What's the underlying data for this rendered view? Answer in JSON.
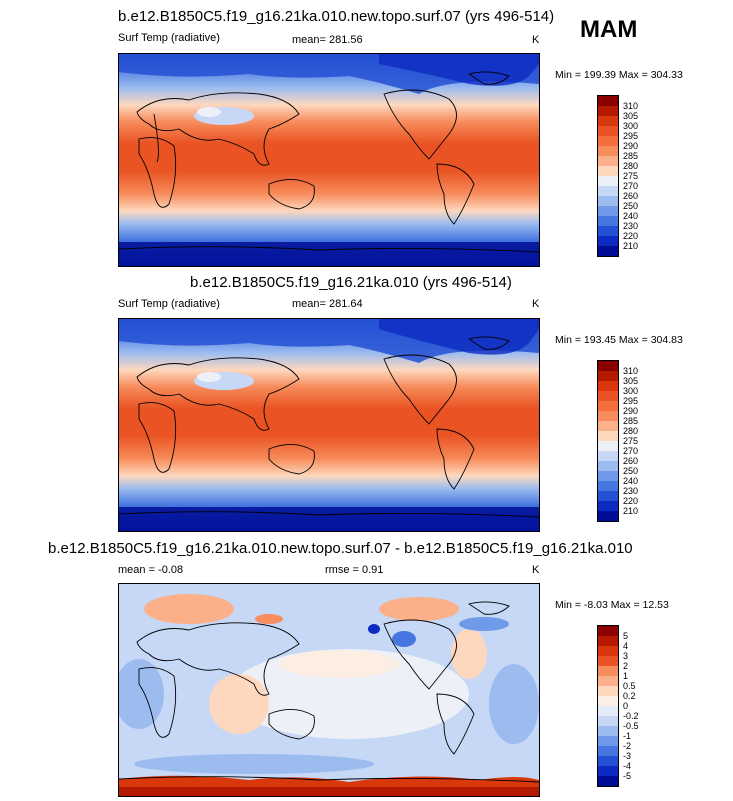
{
  "season": "MAM",
  "panels": [
    {
      "title": "b.e12.B1850C5.f19_g16.21ka.010.new.topo.surf.07 (yrs 496-514)",
      "variable": "Surf Temp (radiative)",
      "stat": "mean= 281.56",
      "stat2": "",
      "units": "K",
      "minmax": "Min = 199.39 Max = 304.33",
      "levels": [
        "310",
        "305",
        "300",
        "295",
        "290",
        "285",
        "280",
        "275",
        "270",
        "260",
        "250",
        "240",
        "230",
        "220",
        "210"
      ],
      "colors": [
        "#8b0000",
        "#b31a00",
        "#d8380c",
        "#ea5424",
        "#f26e3c",
        "#f78c5c",
        "#fbb08a",
        "#fdd8be",
        "#eef0f8",
        "#c6d8f5",
        "#9cbcf0",
        "#6e9ae8",
        "#4676e0",
        "#2450d4",
        "#0d2bc0",
        "#000e96"
      ]
    },
    {
      "title": "b.e12.B1850C5.f19_g16.21ka.010 (yrs 496-514)",
      "variable": "Surf Temp (radiative)",
      "stat": "mean= 281.64",
      "stat2": "",
      "units": "K",
      "minmax": "Min = 193.45 Max = 304.83",
      "levels": [
        "310",
        "305",
        "300",
        "295",
        "290",
        "285",
        "280",
        "275",
        "270",
        "260",
        "250",
        "240",
        "230",
        "220",
        "210"
      ],
      "colors": [
        "#8b0000",
        "#b31a00",
        "#d8380c",
        "#ea5424",
        "#f26e3c",
        "#f78c5c",
        "#fbb08a",
        "#fdd8be",
        "#eef0f8",
        "#c6d8f5",
        "#9cbcf0",
        "#6e9ae8",
        "#4676e0",
        "#2450d4",
        "#0d2bc0",
        "#000e96"
      ]
    },
    {
      "title": "b.e12.B1850C5.f19_g16.21ka.010.new.topo.surf.07 - b.e12.B1850C5.f19_g16.21ka.010",
      "variable": "",
      "stat": "mean =   -0.08",
      "stat2": "rmse =   0.91",
      "units": "K",
      "minmax": "Min = -8.03 Max = 12.53",
      "levels": [
        "5",
        "4",
        "3",
        "2",
        "1",
        "0.5",
        "0.2",
        "0",
        "-0.2",
        "-0.5",
        "-1",
        "-2",
        "-3",
        "-4",
        "-5"
      ],
      "colors": [
        "#8b0000",
        "#b31a00",
        "#d8380c",
        "#ea5424",
        "#f78c5c",
        "#fbb08a",
        "#fdd8be",
        "#fdeee4",
        "#e4ecfa",
        "#c6d8f5",
        "#9cbcf0",
        "#6e9ae8",
        "#4676e0",
        "#2450d4",
        "#0d2bc0",
        "#000e96"
      ]
    }
  ]
}
